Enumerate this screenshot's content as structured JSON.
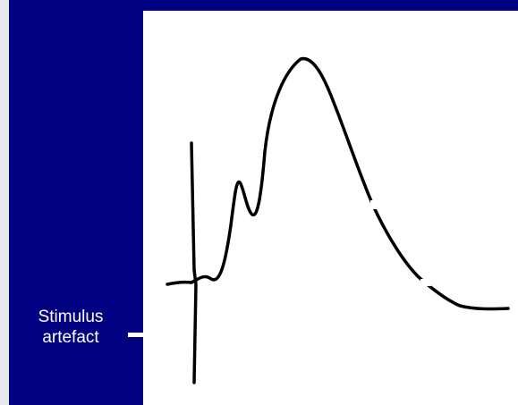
{
  "annotation": {
    "line1": "Stimulus",
    "line2": "artefact"
  },
  "colors": {
    "background": "#e6eaf0",
    "panel": "#000080",
    "plot": "#ffffff",
    "trace": "#000000",
    "label_text": "#ffffff"
  }
}
